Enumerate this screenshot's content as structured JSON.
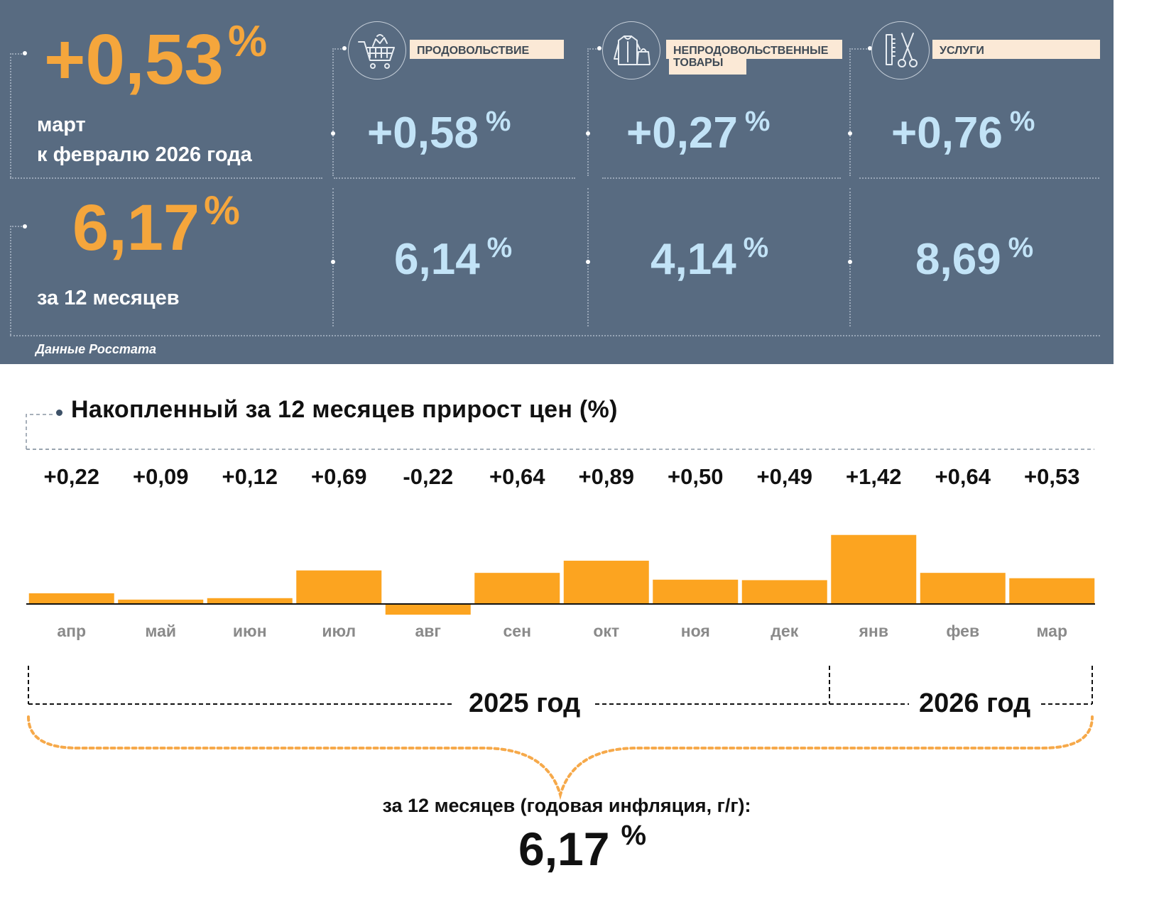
{
  "top_panel": {
    "monthly": {
      "value": "+0,53",
      "unit": "%",
      "label_line1": "март",
      "label_line2": "к февралю 2026 года"
    },
    "annual": {
      "value": "6,17",
      "unit": "%",
      "label": "за 12 месяцев"
    },
    "categories": [
      {
        "icon": "shopping-cart-icon",
        "label": "ПРОДОВОЛЬСТВИЕ",
        "monthly": "+0,58",
        "annual": "6,14",
        "unit": "%"
      },
      {
        "icon": "clothes-icon",
        "label_line1": "НЕПРОДОВОЛЬСТВЕННЫЕ",
        "label_line2": "ТОВАРЫ",
        "monthly": "+0,27",
        "annual": "4,14",
        "unit": "%"
      },
      {
        "icon": "scissors-comb-icon",
        "label": "УСЛУГИ",
        "monthly": "+0,76",
        "annual": "8,69",
        "unit": "%"
      }
    ],
    "source": "Данные Росстата"
  },
  "chart_data": {
    "type": "bar",
    "title": "Накопленный за 12 месяцев прирост цен (%)",
    "categories": [
      "апр",
      "май",
      "июн",
      "июл",
      "авг",
      "сен",
      "окт",
      "ноя",
      "дек",
      "янв",
      "фев",
      "мар"
    ],
    "values": [
      0.22,
      0.09,
      0.12,
      0.69,
      -0.22,
      0.64,
      0.89,
      0.5,
      0.49,
      1.42,
      0.64,
      0.53
    ],
    "data_labels": [
      "+0,22",
      "+0,09",
      "+0,12",
      "+0,69",
      "-0,22",
      "+0,64",
      "+0,89",
      "+0,50",
      "+0,49",
      "+1,42",
      "+0,64",
      "+0,53"
    ],
    "bar_color": "#fca420",
    "year_groups": [
      {
        "label": "2025 год",
        "months": 9
      },
      {
        "label": "2026 год",
        "months": 3
      }
    ]
  },
  "summary": {
    "label": "за 12 месяцев (годовая инфляция, г/г):",
    "value": "6,17",
    "unit": "%"
  },
  "colors": {
    "panel_bg": "#586b81",
    "accent_orange": "#f5a63c",
    "value_blue": "#c2e3f7",
    "label_bg": "#fbe9d6"
  }
}
